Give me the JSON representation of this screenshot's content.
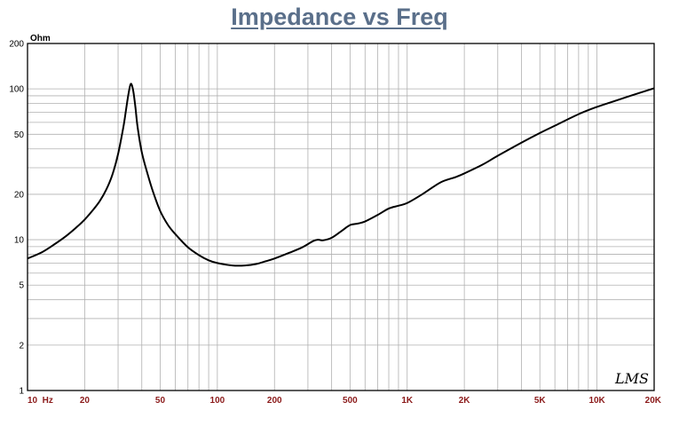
{
  "colors": {
    "title": "#5a6f8a",
    "grid": "#b0b0b0",
    "frame": "#000000",
    "curve": "#000000",
    "x_tick_label": "#8b1a1a",
    "y_tick_label": "#000000"
  },
  "brand_label": "LMS",
  "chart_data": {
    "type": "line",
    "title": "Impedance vs Freq",
    "ylabel": "Ohm",
    "xlabel": "",
    "x_scale": "log",
    "y_scale": "log",
    "xlim": [
      10,
      20000
    ],
    "ylim": [
      1,
      200
    ],
    "grid": true,
    "x_tick_labels": [
      {
        "value": 10,
        "label": "10  Hz"
      },
      {
        "value": 20,
        "label": "20"
      },
      {
        "value": 50,
        "label": "50"
      },
      {
        "value": 100,
        "label": "100"
      },
      {
        "value": 200,
        "label": "200"
      },
      {
        "value": 500,
        "label": "500"
      },
      {
        "value": 1000,
        "label": "1K"
      },
      {
        "value": 2000,
        "label": "2K"
      },
      {
        "value": 5000,
        "label": "5K"
      },
      {
        "value": 10000,
        "label": "10K"
      },
      {
        "value": 20000,
        "label": "20K"
      }
    ],
    "y_tick_labels": [
      {
        "value": 1,
        "label": "1"
      },
      {
        "value": 2,
        "label": "2"
      },
      {
        "value": 5,
        "label": "5"
      },
      {
        "value": 10,
        "label": "10"
      },
      {
        "value": 20,
        "label": "20"
      },
      {
        "value": 50,
        "label": "50"
      },
      {
        "value": 100,
        "label": "100"
      },
      {
        "value": 200,
        "label": "200"
      }
    ],
    "series": [
      {
        "x": [
          10,
          12,
          14,
          16,
          18,
          20,
          22,
          24,
          26,
          28,
          30,
          32,
          33,
          34,
          35,
          36,
          37,
          38,
          40,
          43,
          46,
          50,
          55,
          60,
          70,
          80,
          90,
          100,
          120,
          140,
          160,
          180,
          200,
          240,
          280,
          320,
          340,
          360,
          400,
          450,
          500,
          550,
          600,
          700,
          800,
          900,
          1000,
          1200,
          1500,
          1800,
          2000,
          2500,
          3000,
          4000,
          5000,
          6000,
          8000,
          10000,
          12000,
          15000,
          20000
        ],
        "values": [
          7.5,
          8.3,
          9.4,
          10.6,
          12.0,
          13.6,
          15.6,
          18.0,
          21.5,
          27,
          37,
          56,
          72,
          92,
          108,
          98,
          76,
          56,
          38,
          27,
          20.5,
          15.5,
          12.5,
          10.9,
          8.9,
          7.9,
          7.3,
          7.0,
          6.75,
          6.75,
          6.9,
          7.2,
          7.5,
          8.2,
          8.9,
          9.8,
          10.0,
          9.9,
          10.3,
          11.4,
          12.5,
          12.8,
          13.2,
          14.6,
          16.1,
          16.8,
          17.5,
          20,
          24,
          26,
          27.5,
          31.5,
          36,
          44,
          51,
          57,
          68,
          76,
          82,
          90,
          101
        ]
      }
    ]
  }
}
